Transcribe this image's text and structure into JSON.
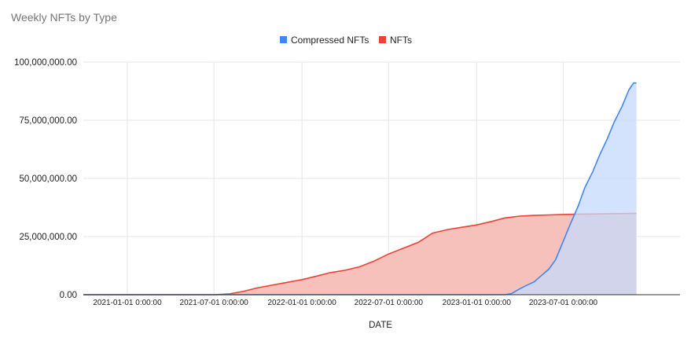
{
  "chart_data": {
    "type": "area",
    "title": "Weekly NFTs by Type",
    "xlabel": "DATE",
    "ylabel": "",
    "ylim": [
      0,
      100000000
    ],
    "yticks": [
      "0.00",
      "25,000,000.00",
      "50,000,000.00",
      "75,000,000.00",
      "100,000,000.00"
    ],
    "xlim": [
      "2020-10-01",
      "2024-03-01"
    ],
    "xticks": [
      "2021-01-01 0:00:00",
      "2021-07-01 0:00:00",
      "2022-01-01 0:00:00",
      "2022-07-01 0:00:00",
      "2023-01-01 0:00:00",
      "2023-07-01 0:00:00"
    ],
    "grid": true,
    "legend_position": "top-center",
    "series": [
      {
        "name": "Compressed NFTs",
        "color": "#4285f4",
        "fill": "#c6dafc",
        "points": [
          [
            "2020-10-01",
            0
          ],
          [
            "2023-01-15",
            0
          ],
          [
            "2023-03-01",
            0
          ],
          [
            "2023-03-15",
            500000
          ],
          [
            "2023-04-01",
            2500000
          ],
          [
            "2023-04-15",
            4000000
          ],
          [
            "2023-05-01",
            5500000
          ],
          [
            "2023-05-15",
            8000000
          ],
          [
            "2023-06-01",
            11000000
          ],
          [
            "2023-06-15",
            15000000
          ],
          [
            "2023-07-01",
            23000000
          ],
          [
            "2023-07-15",
            30000000
          ],
          [
            "2023-08-01",
            38000000
          ],
          [
            "2023-08-15",
            46000000
          ],
          [
            "2023-09-01",
            53000000
          ],
          [
            "2023-09-15",
            60000000
          ],
          [
            "2023-10-01",
            67000000
          ],
          [
            "2023-10-15",
            74000000
          ],
          [
            "2023-11-01",
            81000000
          ],
          [
            "2023-11-15",
            88000000
          ],
          [
            "2023-11-25",
            91000000
          ],
          [
            "2023-12-01",
            91000000
          ]
        ]
      },
      {
        "name": "NFTs",
        "color": "#ea4335",
        "fill": "#f7c1bb",
        "points": [
          [
            "2020-10-01",
            0
          ],
          [
            "2021-07-01",
            0
          ],
          [
            "2021-08-01",
            300000
          ],
          [
            "2021-09-01",
            1500000
          ],
          [
            "2021-10-01",
            3000000
          ],
          [
            "2021-11-01",
            4200000
          ],
          [
            "2021-12-01",
            5300000
          ],
          [
            "2022-01-01",
            6500000
          ],
          [
            "2022-02-01",
            8000000
          ],
          [
            "2022-03-01",
            9500000
          ],
          [
            "2022-04-01",
            10500000
          ],
          [
            "2022-05-01",
            12000000
          ],
          [
            "2022-06-01",
            14500000
          ],
          [
            "2022-07-01",
            17500000
          ],
          [
            "2022-08-01",
            20000000
          ],
          [
            "2022-09-01",
            22500000
          ],
          [
            "2022-10-01",
            26500000
          ],
          [
            "2022-11-01",
            28000000
          ],
          [
            "2022-12-01",
            29000000
          ],
          [
            "2023-01-01",
            30000000
          ],
          [
            "2023-02-01",
            31500000
          ],
          [
            "2023-03-01",
            33000000
          ],
          [
            "2023-04-01",
            33800000
          ],
          [
            "2023-05-01",
            34100000
          ],
          [
            "2023-06-01",
            34300000
          ],
          [
            "2023-07-01",
            34500000
          ],
          [
            "2023-08-01",
            34600000
          ],
          [
            "2023-09-01",
            34700000
          ],
          [
            "2023-10-01",
            34800000
          ],
          [
            "2023-11-01",
            34900000
          ],
          [
            "2023-12-01",
            35000000
          ]
        ]
      }
    ]
  }
}
